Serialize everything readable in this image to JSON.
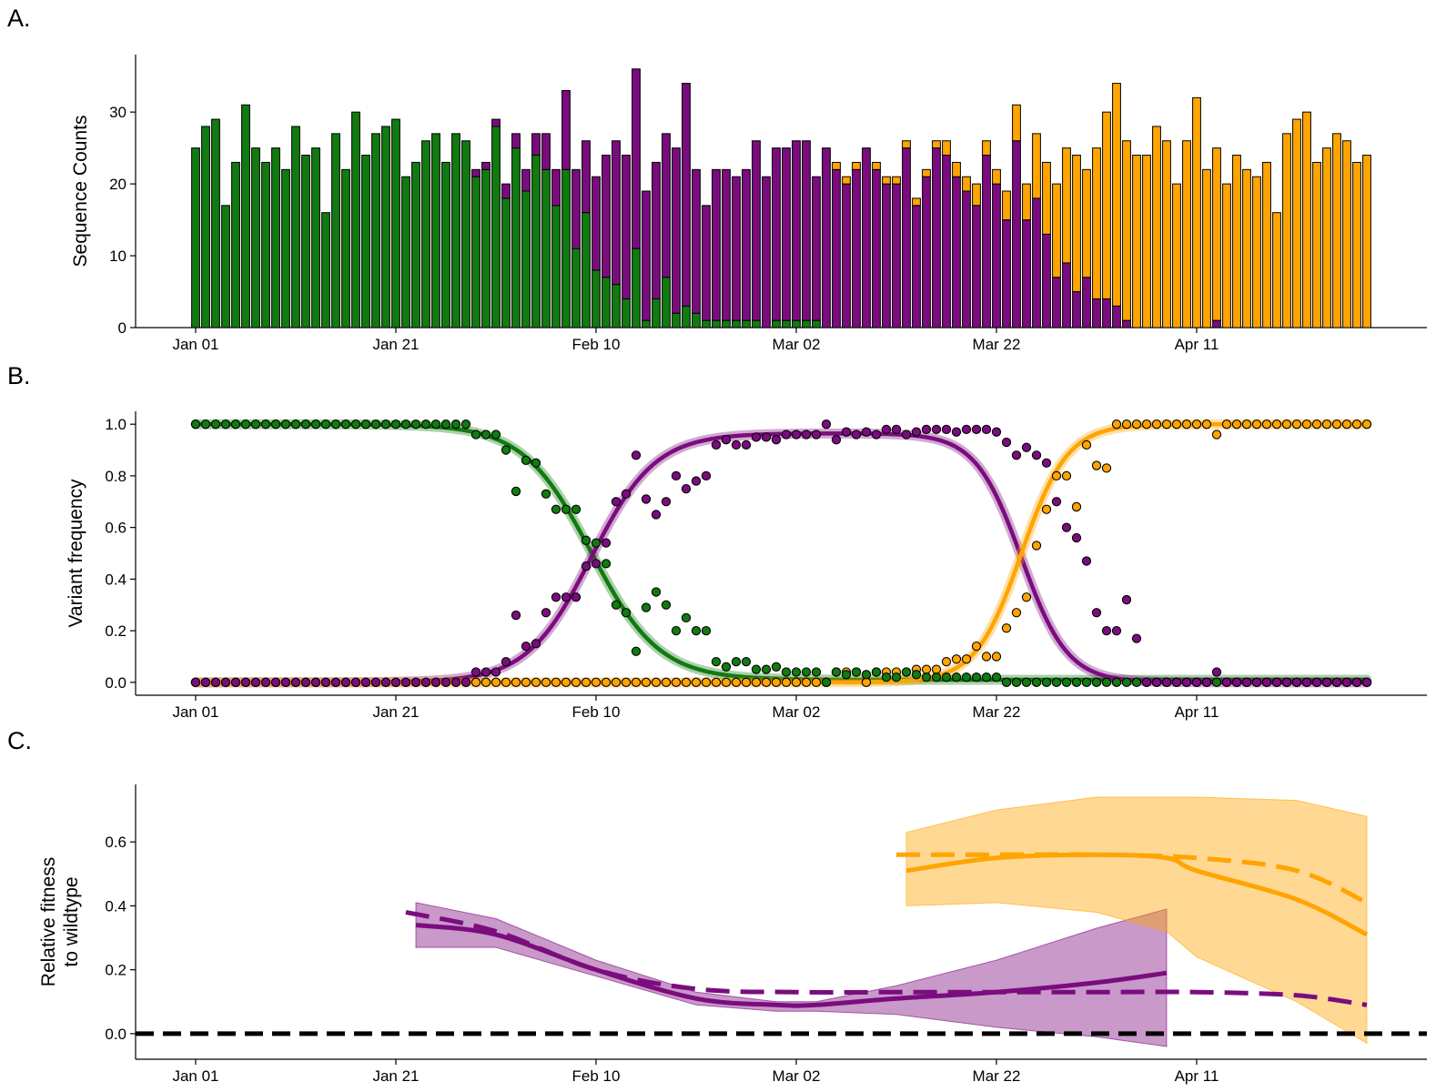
{
  "figure": {
    "panels": [
      {
        "label": "A.",
        "ylabel": "Sequence Counts",
        "ylabel_lines": [
          "Sequence Counts"
        ]
      },
      {
        "label": "B.",
        "ylabel": "Variant frequency",
        "ylabel_lines": [
          "Variant frequency"
        ]
      },
      {
        "label": "C.",
        "ylabel": "Relative fitness to wildtype",
        "ylabel_lines": [
          "Relative fitness",
          "to wildtype"
        ]
      }
    ],
    "x_tick_labels": [
      "Jan 01",
      "Jan 21",
      "Feb 10",
      "Mar 02",
      "Mar 22",
      "Apr 11"
    ],
    "x_tick_days": [
      0,
      20,
      40,
      60,
      80,
      100
    ],
    "colors": {
      "green": "#117a10",
      "purple": "#7b0c7e",
      "orange": "#ffa400",
      "black": "#000000"
    }
  },
  "chart_data": [
    {
      "type": "bar",
      "title": "",
      "xlabel": "",
      "ylabel": "Sequence Counts",
      "xlim": [
        -6,
        123
      ],
      "ylim": [
        0,
        38
      ],
      "y_ticks": [
        0,
        10,
        20,
        30
      ],
      "stacked": true,
      "x_start_date": "2021-01-01",
      "totals": [
        25,
        28,
        29,
        17,
        23,
        31,
        25,
        23,
        25,
        22,
        28,
        24,
        25,
        16,
        27,
        22,
        30,
        24,
        27,
        28,
        29,
        21,
        23,
        26,
        27,
        23,
        27,
        26,
        22,
        23,
        29,
        20,
        27,
        22,
        27,
        27,
        22,
        33,
        22,
        26,
        21,
        24,
        26,
        24,
        36,
        19,
        23,
        27,
        25,
        34,
        22,
        17,
        22,
        22,
        21,
        22,
        26,
        21,
        25,
        25,
        26,
        26,
        21,
        25,
        23,
        21,
        23,
        25,
        23,
        21,
        21,
        26,
        18,
        22,
        26,
        26,
        23,
        21,
        20,
        26,
        22,
        19,
        31,
        20,
        27,
        23,
        20,
        25,
        24,
        22,
        25,
        30,
        34,
        26,
        24,
        24,
        28,
        26,
        20,
        26,
        32,
        22,
        24,
        20,
        24,
        22,
        22,
        23,
        16,
        27,
        29,
        30,
        23,
        25,
        27,
        26,
        23,
        24
      ],
      "series": [
        {
          "name": "",
          "color": "#117a10",
          "values": [
            25,
            28,
            29,
            17,
            23,
            31,
            25,
            23,
            25,
            22,
            28,
            24,
            25,
            16,
            27,
            22,
            30,
            24,
            27,
            28,
            29,
            21,
            23,
            26,
            27,
            23,
            27,
            26,
            21,
            22,
            28,
            18,
            25,
            19,
            24,
            22,
            17,
            22,
            11,
            16,
            8,
            7,
            6,
            4,
            11,
            1,
            4,
            7,
            2,
            3,
            2,
            1,
            1,
            1,
            1,
            1,
            1,
            0,
            1,
            1,
            1,
            1,
            1,
            0,
            0,
            0,
            0,
            0,
            0,
            0,
            0,
            0,
            0,
            0,
            0,
            0,
            0,
            0,
            0,
            0,
            0,
            0,
            0,
            0,
            0,
            0,
            0,
            0,
            0,
            0,
            0,
            0,
            0,
            0,
            0,
            0,
            0,
            0,
            0,
            0,
            0,
            0,
            0,
            0,
            0,
            0,
            0,
            0,
            0,
            0,
            0,
            0,
            0,
            0,
            0,
            0,
            0,
            0
          ]
        },
        {
          "name": "",
          "color": "#7b0c7e",
          "values": [
            0,
            0,
            0,
            0,
            0,
            0,
            0,
            0,
            0,
            0,
            0,
            0,
            0,
            0,
            0,
            0,
            0,
            0,
            0,
            0,
            0,
            0,
            0,
            0,
            0,
            0,
            0,
            0,
            1,
            1,
            1,
            2,
            2,
            3,
            3,
            5,
            5,
            11,
            11,
            10,
            13,
            17,
            20,
            20,
            25,
            18,
            19,
            20,
            23,
            31,
            20,
            16,
            21,
            21,
            20,
            21,
            25,
            21,
            24,
            24,
            25,
            25,
            20,
            25,
            22,
            20,
            22,
            25,
            22,
            20,
            20,
            25,
            17,
            21,
            25,
            24,
            21,
            19,
            17,
            24,
            20,
            15,
            26,
            15,
            18,
            13,
            7,
            9,
            5,
            7,
            4,
            4,
            3,
            1,
            0,
            0,
            0,
            0,
            0,
            0,
            0,
            0,
            1,
            0,
            0,
            0,
            0,
            0,
            0,
            0,
            0,
            0,
            0,
            0,
            0,
            0,
            0,
            0
          ]
        },
        {
          "name": "",
          "color": "#ffa400",
          "values": [
            0,
            0,
            0,
            0,
            0,
            0,
            0,
            0,
            0,
            0,
            0,
            0,
            0,
            0,
            0,
            0,
            0,
            0,
            0,
            0,
            0,
            0,
            0,
            0,
            0,
            0,
            0,
            0,
            0,
            0,
            0,
            0,
            0,
            0,
            0,
            0,
            0,
            0,
            0,
            0,
            0,
            0,
            0,
            0,
            0,
            0,
            0,
            0,
            0,
            0,
            0,
            0,
            0,
            0,
            0,
            0,
            0,
            0,
            0,
            0,
            0,
            0,
            0,
            0,
            1,
            1,
            1,
            0,
            1,
            1,
            1,
            1,
            1,
            1,
            1,
            2,
            2,
            2,
            3,
            2,
            2,
            4,
            5,
            5,
            9,
            10,
            13,
            16,
            19,
            15,
            21,
            26,
            31,
            25,
            24,
            24,
            28,
            26,
            20,
            26,
            32,
            22,
            24,
            20,
            24,
            22,
            21,
            23,
            16,
            27,
            29,
            30,
            23,
            25,
            27,
            26,
            23,
            24
          ]
        }
      ]
    },
    {
      "type": "scatter",
      "title": "",
      "xlabel": "",
      "ylabel": "Variant frequency",
      "xlim": [
        -6,
        123
      ],
      "ylim": [
        -0.05,
        1.05
      ],
      "y_ticks": [
        0.0,
        0.2,
        0.4,
        0.6,
        0.8,
        1.0
      ],
      "x_start_date": "2021-01-01",
      "points": {
        "green": [
          1,
          1,
          1,
          1,
          1,
          1,
          1,
          1,
          1,
          1,
          1,
          1,
          1,
          1,
          1,
          1,
          1,
          1,
          1,
          1,
          1,
          1,
          1,
          1,
          1,
          1,
          1,
          1,
          0.96,
          0.96,
          0.96,
          0.9,
          0.74,
          0.86,
          0.85,
          0.73,
          0.67,
          0.67,
          0.67,
          0.55,
          0.54,
          0.46,
          0.3,
          0.27,
          0.12,
          0.29,
          0.35,
          0.3,
          0.2,
          0.25,
          0.2,
          0.2,
          0.08,
          0.06,
          0.08,
          0.08,
          0.05,
          0.05,
          0.06,
          0.04,
          0.04,
          0.04,
          0.04,
          0.0,
          0.04,
          0.03,
          0.04,
          0.03,
          0.04,
          0.02,
          0.02,
          0.04,
          0.03,
          0.02,
          0.02,
          0.02,
          0.02,
          0.02,
          0.02,
          0.02,
          0.02,
          0.0,
          0.0,
          0.0,
          0.0,
          0.0,
          0.0,
          0.0,
          0.0,
          0.0,
          0.0,
          0.0,
          0.0,
          0.0,
          0.0,
          0.0,
          0.0,
          0.0,
          0.0,
          0.0,
          0.0,
          0.0,
          0.0,
          0.0,
          0.0,
          0.0,
          0.0,
          0.0,
          0.0,
          0.0,
          0.0,
          0.0,
          0.0,
          0.0,
          0.0,
          0.0,
          0.0,
          0.0
        ],
        "purple": [
          0,
          0,
          0,
          0,
          0,
          0,
          0,
          0,
          0,
          0,
          0,
          0,
          0,
          0,
          0,
          0,
          0,
          0,
          0,
          0,
          0,
          0,
          0,
          0,
          0,
          0,
          0,
          0,
          0.04,
          0.04,
          0.04,
          0.08,
          0.26,
          0.14,
          0.15,
          0.27,
          0.33,
          0.33,
          0.33,
          0.45,
          0.46,
          0.54,
          0.7,
          0.73,
          0.88,
          0.71,
          0.65,
          0.7,
          0.8,
          0.75,
          0.78,
          0.8,
          0.92,
          0.94,
          0.92,
          0.92,
          0.95,
          0.95,
          0.94,
          0.96,
          0.96,
          0.96,
          0.96,
          1.0,
          0.94,
          0.97,
          0.96,
          0.97,
          0.96,
          0.98,
          0.98,
          0.96,
          0.97,
          0.98,
          0.98,
          0.98,
          0.97,
          0.98,
          0.98,
          0.98,
          0.97,
          0.93,
          0.88,
          0.91,
          0.88,
          0.85,
          0.7,
          0.6,
          0.56,
          0.47,
          0.27,
          0.2,
          0.2,
          0.32,
          0.17,
          0.0,
          0.0,
          0.0,
          0.0,
          0.0,
          0.0,
          0.0,
          0.04,
          0.0,
          0.0,
          0.0,
          0.0,
          0.0,
          0.0,
          0.0,
          0.0,
          0.0,
          0.0,
          0.0,
          0.0,
          0.0,
          0.0,
          0.0
        ],
        "orange": [
          0,
          0,
          0,
          0,
          0,
          0,
          0,
          0,
          0,
          0,
          0,
          0,
          0,
          0,
          0,
          0,
          0,
          0,
          0,
          0,
          0,
          0,
          0,
          0,
          0,
          0,
          0,
          0,
          0,
          0,
          0,
          0,
          0,
          0,
          0,
          0,
          0,
          0,
          0,
          0,
          0,
          0,
          0,
          0,
          0,
          0,
          0,
          0,
          0,
          0,
          0,
          0,
          0,
          0,
          0,
          0,
          0,
          0,
          0,
          0,
          0,
          0,
          0,
          0,
          0.04,
          0.04,
          0.04,
          0,
          0.04,
          0.04,
          0.04,
          0.04,
          0.05,
          0.05,
          0.05,
          0.08,
          0.09,
          0.09,
          0.14,
          0.1,
          0.1,
          0.21,
          0.27,
          0.33,
          0.53,
          0.67,
          0.8,
          0.8,
          0.68,
          0.92,
          0.84,
          0.83,
          1,
          1,
          1,
          1,
          1,
          1,
          1,
          1,
          1,
          1,
          0.96,
          1,
          1,
          1,
          1,
          1,
          1,
          1,
          1,
          1,
          1,
          1,
          1,
          1,
          1,
          1
        ]
      },
      "fits": {
        "green": {
          "type": "logistic-decay",
          "midpoint_day": 39.5,
          "plateau": 0.01
        },
        "purple": {
          "type": "rise-fall",
          "rise_midpoint_day": 39.5,
          "fall_midpoint_day": 82.5
        },
        "orange": {
          "type": "logistic-rise",
          "midpoint_day": 82.5
        }
      }
    },
    {
      "type": "line",
      "title": "",
      "xlabel": "",
      "ylabel": "Relative fitness to wildtype",
      "xlim": [
        -6,
        123
      ],
      "ylim": [
        -0.08,
        0.78
      ],
      "y_ticks": [
        0.0,
        0.2,
        0.4,
        0.6
      ],
      "x_start_date": "2021-01-01",
      "series": [
        {
          "name": "",
          "color": "#7b0c7e",
          "style": "solid",
          "x": [
            22,
            30,
            40,
            50,
            58,
            62,
            70,
            80,
            90,
            97
          ],
          "y": [
            0.34,
            0.31,
            0.2,
            0.11,
            0.09,
            0.09,
            0.11,
            0.13,
            0.16,
            0.19
          ]
        },
        {
          "name": "",
          "color": "#7b0c7e",
          "style": "dashed",
          "x": [
            21,
            30,
            40,
            50,
            60,
            70,
            80,
            90,
            100,
            110,
            117
          ],
          "y": [
            0.38,
            0.32,
            0.2,
            0.14,
            0.13,
            0.13,
            0.13,
            0.13,
            0.13,
            0.12,
            0.09
          ]
        },
        {
          "name": "",
          "color": "#ffa400",
          "style": "solid",
          "x": [
            71,
            80,
            90,
            97,
            100,
            110,
            117
          ],
          "y": [
            0.51,
            0.55,
            0.56,
            0.55,
            0.51,
            0.42,
            0.31
          ]
        },
        {
          "name": "",
          "color": "#ffa400",
          "style": "dashed",
          "x": [
            70,
            80,
            90,
            100,
            110,
            117
          ],
          "y": [
            0.56,
            0.56,
            0.56,
            0.55,
            0.51,
            0.41
          ]
        },
        {
          "name": "",
          "color": "#000000",
          "style": "dashed",
          "x": [
            -6,
            123
          ],
          "y": [
            0,
            0
          ]
        }
      ],
      "bands": [
        {
          "color": "#7b0c7e",
          "x": [
            22,
            30,
            40,
            50,
            58,
            62,
            70,
            80,
            90,
            97
          ],
          "upper": [
            0.41,
            0.36,
            0.23,
            0.13,
            0.1,
            0.1,
            0.15,
            0.23,
            0.33,
            0.39
          ],
          "lower": [
            0.27,
            0.27,
            0.18,
            0.09,
            0.07,
            0.07,
            0.06,
            0.02,
            -0.01,
            -0.04
          ]
        },
        {
          "color": "#ffa400",
          "x": [
            71,
            80,
            90,
            97,
            100,
            110,
            117
          ],
          "upper": [
            0.63,
            0.7,
            0.74,
            0.74,
            0.74,
            0.73,
            0.68
          ],
          "lower": [
            0.4,
            0.41,
            0.38,
            0.32,
            0.24,
            0.1,
            -0.03
          ]
        }
      ]
    }
  ]
}
